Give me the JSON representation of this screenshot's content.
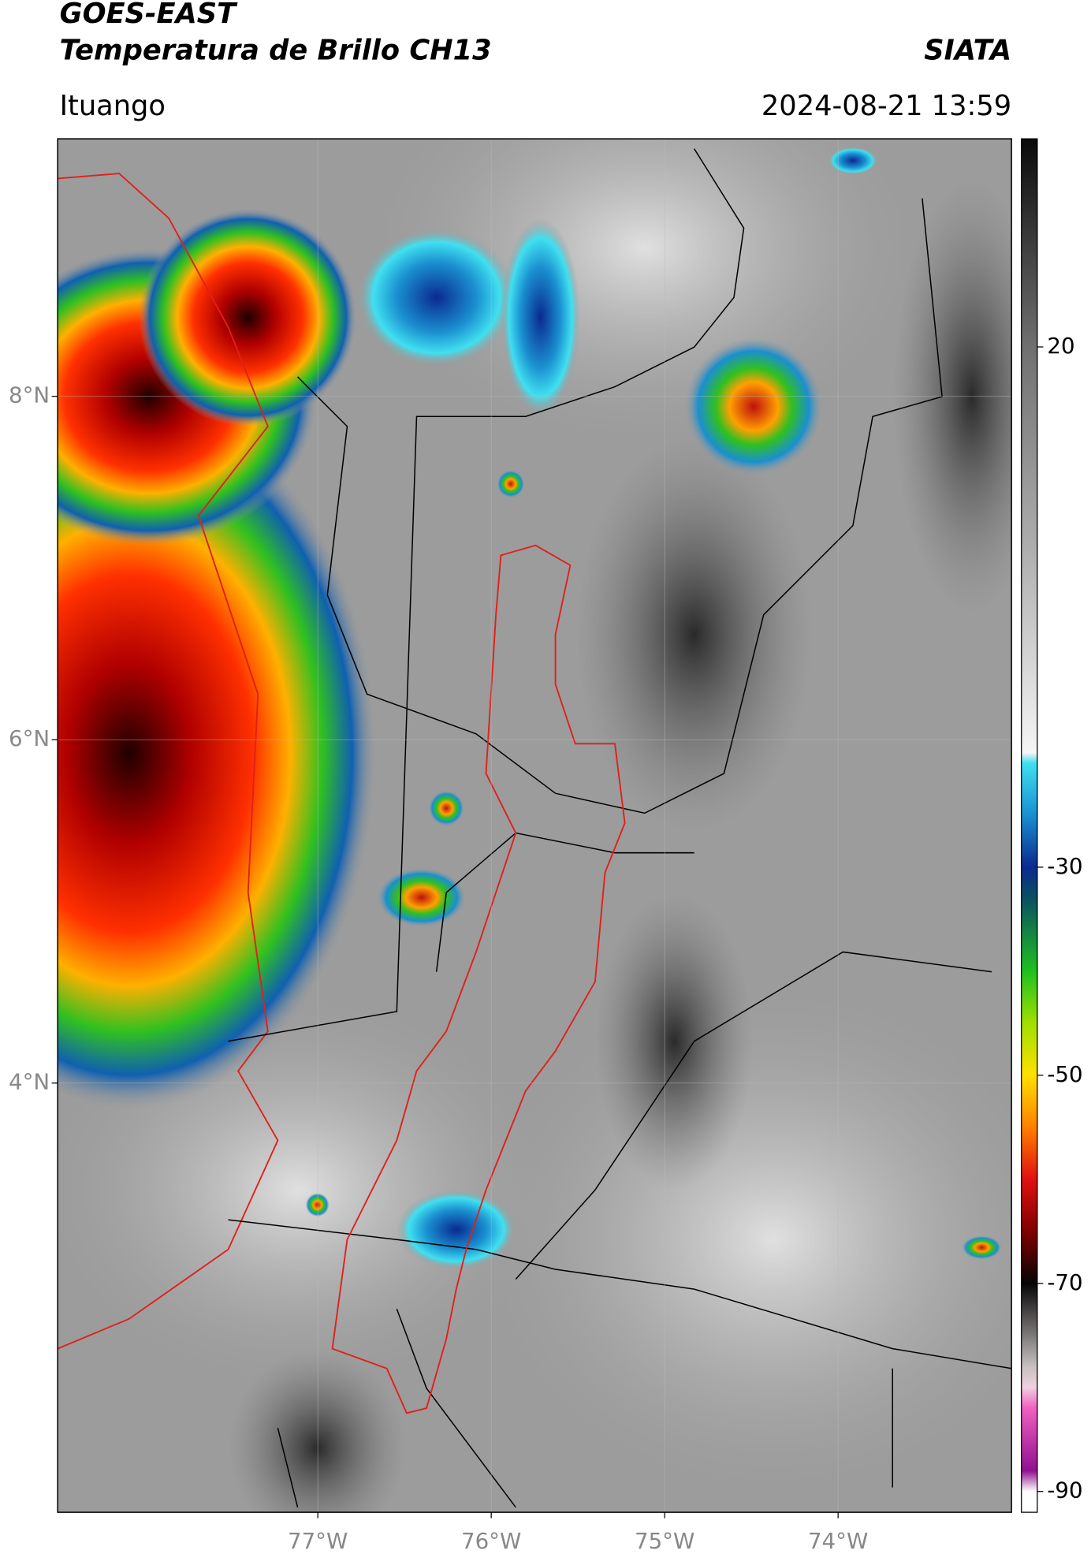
{
  "header": {
    "title": "GOES-EAST",
    "subtitle": "Temperatura de Brillo CH13",
    "source": "SIATA",
    "region": "Ituango",
    "timestamp": "2024-08-21 13:59"
  },
  "map": {
    "xlim": [
      -78.5,
      -73
    ],
    "ylim": [
      1.5,
      9.5
    ],
    "xticks": [
      {
        "value": -77,
        "label": "77°W"
      },
      {
        "value": -76,
        "label": "76°W"
      },
      {
        "value": -75,
        "label": "75°W"
      },
      {
        "value": -74,
        "label": "74°W"
      }
    ],
    "yticks": [
      {
        "value": 8,
        "label": "8°N"
      },
      {
        "value": 6,
        "label": "6°N"
      },
      {
        "value": 4,
        "label": "4°N"
      }
    ],
    "grid": true
  },
  "colorbar": {
    "lim": [
      -92,
      40
    ],
    "ticks": [
      20,
      -30,
      -50,
      -70,
      -90
    ],
    "colormap": [
      {
        "value": 40,
        "color": "#0a0a0a"
      },
      {
        "value": 20,
        "color": "#707070"
      },
      {
        "value": 0,
        "color": "#b0b0b0"
      },
      {
        "value": -19,
        "color": "#f5f5f5"
      },
      {
        "value": -20,
        "color": "#40e0f0"
      },
      {
        "value": -25,
        "color": "#1a8fd0"
      },
      {
        "value": -30,
        "color": "#0a2a90"
      },
      {
        "value": -33,
        "color": "#0a5060"
      },
      {
        "value": -40,
        "color": "#20c020"
      },
      {
        "value": -45,
        "color": "#a0e000"
      },
      {
        "value": -50,
        "color": "#ffe000"
      },
      {
        "value": -55,
        "color": "#ff8000"
      },
      {
        "value": -60,
        "color": "#e01010"
      },
      {
        "value": -65,
        "color": "#800000"
      },
      {
        "value": -70,
        "color": "#050505"
      },
      {
        "value": -78,
        "color": "#c8c0c0"
      },
      {
        "value": -80,
        "color": "#f0d0e0"
      },
      {
        "value": -82,
        "color": "#f060c0"
      },
      {
        "value": -88,
        "color": "#901090"
      },
      {
        "value": -90,
        "color": "#ffffff"
      }
    ]
  }
}
